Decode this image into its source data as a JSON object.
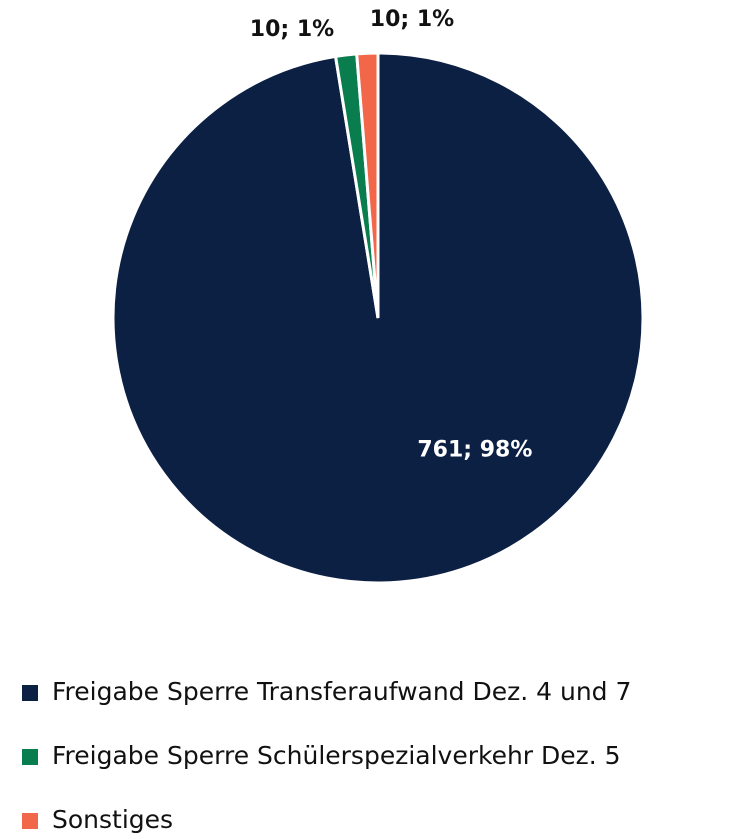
{
  "chart_data": {
    "type": "pie",
    "categories": [
      "Freigabe Sperre Transferaufwand Dez. 4 und 7",
      "Freigabe Sperre Schülerspezialverkehr Dez. 5",
      "Sonstiges"
    ],
    "values": [
      761,
      10,
      10
    ],
    "value_labels": [
      "761; 98%",
      "10; 1%",
      "10; 1%"
    ],
    "colors": [
      "#0c2044",
      "#0a7d4f",
      "#f26649"
    ],
    "legend": "bottom"
  }
}
